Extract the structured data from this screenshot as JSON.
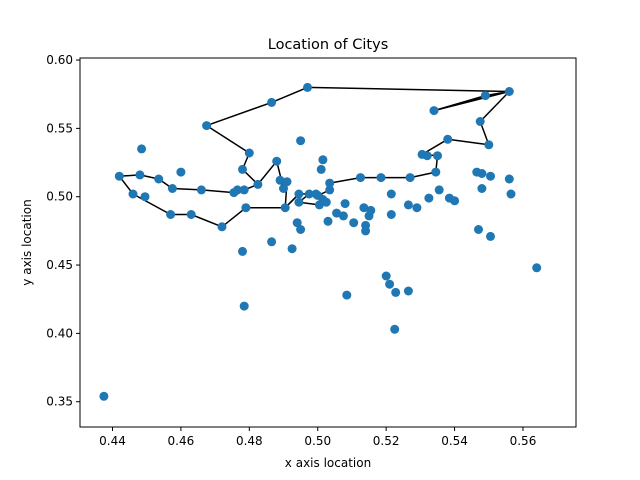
{
  "chart_data": {
    "type": "scatter",
    "title": "Location of Citys",
    "xlabel": "x axis location",
    "ylabel": "y axis location",
    "xlim": [
      0.4305,
      0.5755
    ],
    "ylim": [
      0.3315,
      0.6015
    ],
    "xticks": [
      "0.44",
      "0.46",
      "0.48",
      "0.50",
      "0.52",
      "0.54",
      "0.56"
    ],
    "yticks": [
      "0.35",
      "0.40",
      "0.45",
      "0.50",
      "0.55",
      "0.60"
    ],
    "grid": false,
    "colors": {
      "points": "#1f77b4",
      "route": "#000000"
    },
    "points": [
      [
        0.4375,
        0.354
      ],
      [
        0.442,
        0.515
      ],
      [
        0.446,
        0.502
      ],
      [
        0.448,
        0.516
      ],
      [
        0.4485,
        0.535
      ],
      [
        0.4495,
        0.5
      ],
      [
        0.4535,
        0.513
      ],
      [
        0.457,
        0.487
      ],
      [
        0.4575,
        0.506
      ],
      [
        0.46,
        0.518
      ],
      [
        0.463,
        0.487
      ],
      [
        0.466,
        0.505
      ],
      [
        0.4675,
        0.552
      ],
      [
        0.472,
        0.478
      ],
      [
        0.4755,
        0.503
      ],
      [
        0.4765,
        0.505
      ],
      [
        0.478,
        0.52
      ],
      [
        0.478,
        0.46
      ],
      [
        0.4785,
        0.42
      ],
      [
        0.4785,
        0.505
      ],
      [
        0.479,
        0.492
      ],
      [
        0.48,
        0.532
      ],
      [
        0.4825,
        0.509
      ],
      [
        0.4865,
        0.569
      ],
      [
        0.4865,
        0.467
      ],
      [
        0.488,
        0.526
      ],
      [
        0.489,
        0.512
      ],
      [
        0.49,
        0.506
      ],
      [
        0.4905,
        0.492
      ],
      [
        0.491,
        0.511
      ],
      [
        0.4925,
        0.462
      ],
      [
        0.494,
        0.481
      ],
      [
        0.4945,
        0.502
      ],
      [
        0.4945,
        0.496
      ],
      [
        0.495,
        0.476
      ],
      [
        0.495,
        0.541
      ],
      [
        0.497,
        0.58
      ],
      [
        0.4975,
        0.502
      ],
      [
        0.4995,
        0.502
      ],
      [
        0.5,
        0.501
      ],
      [
        0.5005,
        0.494
      ],
      [
        0.501,
        0.52
      ],
      [
        0.5015,
        0.527
      ],
      [
        0.5015,
        0.498
      ],
      [
        0.5025,
        0.496
      ],
      [
        0.503,
        0.482
      ],
      [
        0.5035,
        0.505
      ],
      [
        0.5035,
        0.51
      ],
      [
        0.5055,
        0.488
      ],
      [
        0.5075,
        0.486
      ],
      [
        0.508,
        0.495
      ],
      [
        0.5085,
        0.428
      ],
      [
        0.5105,
        0.481
      ],
      [
        0.5125,
        0.514
      ],
      [
        0.5135,
        0.492
      ],
      [
        0.514,
        0.479
      ],
      [
        0.514,
        0.475
      ],
      [
        0.515,
        0.486
      ],
      [
        0.5155,
        0.49
      ],
      [
        0.5185,
        0.514
      ],
      [
        0.52,
        0.442
      ],
      [
        0.521,
        0.436
      ],
      [
        0.5215,
        0.502
      ],
      [
        0.5215,
        0.487
      ],
      [
        0.5225,
        0.403
      ],
      [
        0.5228,
        0.43
      ],
      [
        0.5265,
        0.431
      ],
      [
        0.5265,
        0.494
      ],
      [
        0.527,
        0.514
      ],
      [
        0.529,
        0.492
      ],
      [
        0.5305,
        0.531
      ],
      [
        0.532,
        0.53
      ],
      [
        0.5325,
        0.499
      ],
      [
        0.534,
        0.563
      ],
      [
        0.5345,
        0.518
      ],
      [
        0.535,
        0.53
      ],
      [
        0.5355,
        0.505
      ],
      [
        0.538,
        0.542
      ],
      [
        0.5385,
        0.499
      ],
      [
        0.54,
        0.497
      ],
      [
        0.5465,
        0.518
      ],
      [
        0.547,
        0.476
      ],
      [
        0.5475,
        0.555
      ],
      [
        0.548,
        0.506
      ],
      [
        0.548,
        0.517
      ],
      [
        0.549,
        0.574
      ],
      [
        0.55,
        0.538
      ],
      [
        0.5505,
        0.515
      ],
      [
        0.5505,
        0.471
      ],
      [
        0.556,
        0.577
      ],
      [
        0.556,
        0.513
      ],
      [
        0.5565,
        0.502
      ],
      [
        0.564,
        0.448
      ]
    ],
    "route": [
      [
        0.497,
        0.58
      ],
      [
        0.556,
        0.577
      ],
      [
        0.534,
        0.563
      ],
      [
        0.549,
        0.574
      ],
      [
        0.556,
        0.577
      ],
      [
        0.5475,
        0.555
      ],
      [
        0.55,
        0.538
      ],
      [
        0.538,
        0.542
      ],
      [
        0.5305,
        0.531
      ],
      [
        0.535,
        0.53
      ],
      [
        0.5345,
        0.518
      ],
      [
        0.527,
        0.514
      ],
      [
        0.5185,
        0.514
      ],
      [
        0.5125,
        0.514
      ],
      [
        0.5035,
        0.51
      ],
      [
        0.5035,
        0.505
      ],
      [
        0.501,
        0.502
      ],
      [
        0.5025,
        0.496
      ],
      [
        0.4975,
        0.502
      ],
      [
        0.4945,
        0.496
      ],
      [
        0.5005,
        0.494
      ],
      [
        0.5015,
        0.498
      ],
      [
        0.5,
        0.501
      ],
      [
        0.4995,
        0.502
      ],
      [
        0.4945,
        0.502
      ],
      [
        0.4905,
        0.492
      ],
      [
        0.491,
        0.511
      ],
      [
        0.489,
        0.512
      ],
      [
        0.49,
        0.506
      ],
      [
        0.488,
        0.526
      ],
      [
        0.4825,
        0.509
      ],
      [
        0.478,
        0.52
      ],
      [
        0.48,
        0.532
      ],
      [
        0.4675,
        0.552
      ],
      [
        0.4865,
        0.569
      ],
      [
        0.497,
        0.58
      ]
    ],
    "route_tail": [
      [
        0.4945,
        0.502
      ],
      [
        0.4905,
        0.492
      ],
      [
        0.479,
        0.492
      ],
      [
        0.472,
        0.478
      ],
      [
        0.463,
        0.487
      ],
      [
        0.457,
        0.487
      ],
      [
        0.446,
        0.502
      ],
      [
        0.442,
        0.515
      ],
      [
        0.448,
        0.516
      ],
      [
        0.4535,
        0.513
      ],
      [
        0.4575,
        0.506
      ],
      [
        0.466,
        0.505
      ],
      [
        0.4755,
        0.503
      ],
      [
        0.4765,
        0.505
      ],
      [
        0.4785,
        0.505
      ],
      [
        0.4825,
        0.509
      ]
    ]
  }
}
